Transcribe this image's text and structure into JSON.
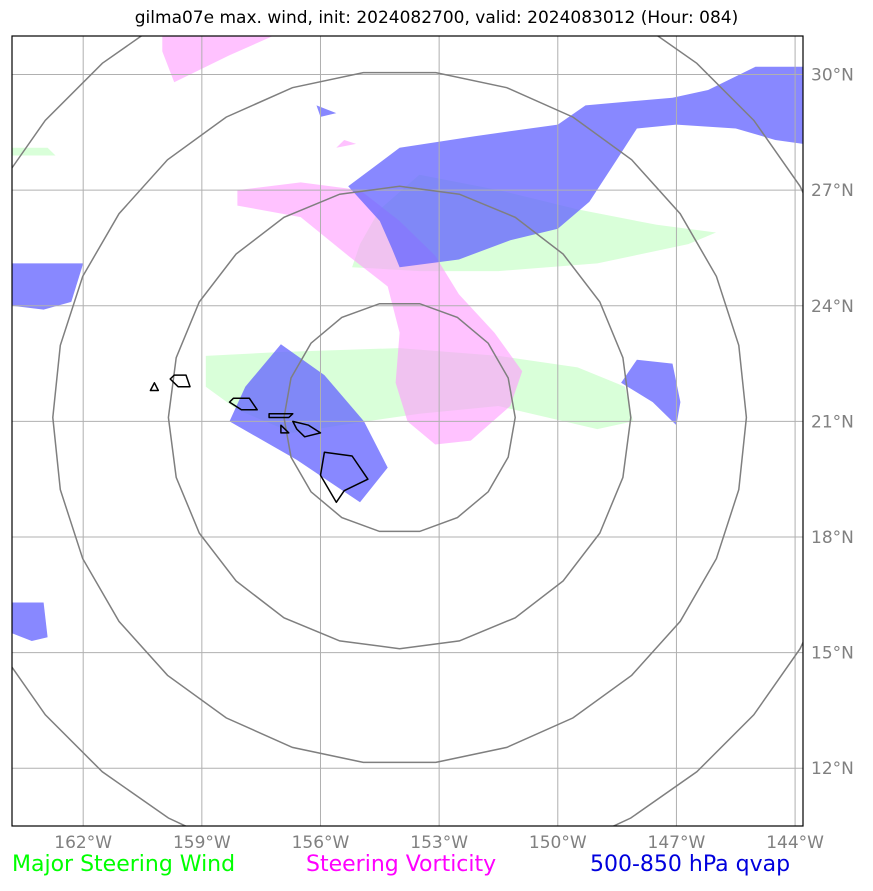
{
  "title": "gilma07e max. wind, init: 2024082700, valid: 2024083012 (Hour: 084)",
  "map": {
    "lon_range": [
      -163.8,
      -143.8
    ],
    "lat_range": [
      10.5,
      31.0
    ],
    "lon_ticks": [
      {
        "value": -162,
        "label": "162°W"
      },
      {
        "value": -159,
        "label": "159°W"
      },
      {
        "value": -156,
        "label": "156°W"
      },
      {
        "value": -153,
        "label": "153°W"
      },
      {
        "value": -150,
        "label": "150°W"
      },
      {
        "value": -147,
        "label": "147°W"
      },
      {
        "value": -144,
        "label": "144°W"
      }
    ],
    "lat_ticks": [
      {
        "value": 12,
        "label": "12°N"
      },
      {
        "value": 15,
        "label": "15°N"
      },
      {
        "value": 18,
        "label": "18°N"
      },
      {
        "value": 21,
        "label": "21°N"
      },
      {
        "value": 24,
        "label": "24°N"
      },
      {
        "value": 27,
        "label": "27°N"
      },
      {
        "value": 30,
        "label": "30°N"
      }
    ],
    "grid": true,
    "center": {
      "lon": -154.0,
      "lat": 21.1
    },
    "range_rings_deg": [
      3,
      6,
      9,
      12
    ],
    "colors": {
      "wind": "#ccffcc",
      "vorticity": "#ff99ff",
      "qvap": "#6666ff",
      "rings": "#7f7f7f",
      "grid": "#b0b0b0",
      "coast": "#000000"
    },
    "layers": {
      "wind": [
        [
          [
            -158.9,
            22.7
          ],
          [
            -157.0,
            22.8
          ],
          [
            -154.0,
            22.9
          ],
          [
            -151.5,
            22.7
          ],
          [
            -149.5,
            22.4
          ],
          [
            -148.3,
            21.9
          ],
          [
            -148.1,
            21.0
          ],
          [
            -149.0,
            20.8
          ],
          [
            -151.5,
            21.4
          ],
          [
            -153.5,
            21.2
          ],
          [
            -155.5,
            20.9
          ],
          [
            -156.7,
            20.7
          ],
          [
            -158.1,
            21.3
          ],
          [
            -158.9,
            21.9
          ]
        ],
        [
          [
            -153.5,
            27.4
          ],
          [
            -151.5,
            27.0
          ],
          [
            -149.5,
            26.5
          ],
          [
            -147.5,
            26.1
          ],
          [
            -146.0,
            25.9
          ],
          [
            -146.7,
            25.6
          ],
          [
            -149.0,
            25.1
          ],
          [
            -151.5,
            24.9
          ],
          [
            -153.5,
            24.9
          ],
          [
            -155.2,
            25.0
          ],
          [
            -155.0,
            25.6
          ],
          [
            -154.5,
            26.5
          ]
        ],
        [
          [
            -163.8,
            28.1
          ],
          [
            -162.9,
            28.1
          ],
          [
            -162.7,
            27.9
          ],
          [
            -163.8,
            27.9
          ]
        ]
      ],
      "vorticity": [
        [
          [
            -160.0,
            31.0
          ],
          [
            -157.2,
            31.0
          ],
          [
            -158.3,
            30.5
          ],
          [
            -159.7,
            29.8
          ],
          [
            -160.0,
            30.6
          ]
        ],
        [
          [
            -158.1,
            27.0
          ],
          [
            -156.5,
            27.2
          ],
          [
            -155.0,
            27.0
          ],
          [
            -154.0,
            26.2
          ],
          [
            -153.1,
            25.3
          ],
          [
            -152.5,
            24.3
          ],
          [
            -151.6,
            23.3
          ],
          [
            -150.9,
            22.3
          ],
          [
            -151.2,
            21.4
          ],
          [
            -152.2,
            20.5
          ],
          [
            -153.1,
            20.4
          ],
          [
            -153.8,
            21.0
          ],
          [
            -154.1,
            22.0
          ],
          [
            -154.0,
            23.3
          ],
          [
            -154.3,
            24.5
          ],
          [
            -155.3,
            25.3
          ],
          [
            -156.5,
            26.3
          ],
          [
            -158.1,
            26.6
          ]
        ],
        [
          [
            -155.6,
            28.1
          ],
          [
            -155.1,
            28.2
          ],
          [
            -155.4,
            28.3
          ]
        ]
      ],
      "qvap": [
        [
          [
            -155.3,
            27.1
          ],
          [
            -154.0,
            28.1
          ],
          [
            -152.1,
            28.4
          ],
          [
            -150.0,
            28.7
          ],
          [
            -149.3,
            29.2
          ],
          [
            -147.1,
            29.4
          ],
          [
            -146.2,
            29.6
          ],
          [
            -145.0,
            30.2
          ],
          [
            -143.8,
            30.2
          ],
          [
            -143.8,
            28.2
          ],
          [
            -144.5,
            28.3
          ],
          [
            -145.5,
            28.6
          ],
          [
            -147.0,
            28.7
          ],
          [
            -148.0,
            28.6
          ],
          [
            -148.5,
            27.8
          ],
          [
            -149.2,
            26.7
          ],
          [
            -150.0,
            26.0
          ],
          [
            -151.2,
            25.7
          ],
          [
            -152.5,
            25.2
          ],
          [
            -154.0,
            25.0
          ],
          [
            -154.2,
            25.5
          ],
          [
            -154.5,
            26.2
          ]
        ],
        [
          [
            -163.8,
            25.1
          ],
          [
            -162.0,
            25.1
          ],
          [
            -162.3,
            24.1
          ],
          [
            -163.0,
            23.9
          ],
          [
            -163.8,
            24.0
          ]
        ],
        [
          [
            -157.0,
            23.0
          ],
          [
            -155.9,
            22.2
          ],
          [
            -154.9,
            21.0
          ],
          [
            -154.3,
            19.8
          ],
          [
            -155.0,
            18.9
          ],
          [
            -156.6,
            20.0
          ],
          [
            -158.3,
            21.0
          ],
          [
            -157.9,
            21.9
          ]
        ],
        [
          [
            -148.0,
            22.6
          ],
          [
            -147.1,
            22.5
          ],
          [
            -146.9,
            21.5
          ],
          [
            -147.0,
            20.9
          ],
          [
            -147.6,
            21.5
          ],
          [
            -148.4,
            22.0
          ]
        ],
        [
          [
            -163.8,
            16.3
          ],
          [
            -163.0,
            16.3
          ],
          [
            -162.9,
            15.4
          ],
          [
            -163.3,
            15.3
          ],
          [
            -163.8,
            15.5
          ]
        ],
        [
          [
            -156.1,
            29.2
          ],
          [
            -155.6,
            29.0
          ],
          [
            -156.0,
            28.9
          ]
        ]
      ]
    },
    "islands": [
      [
        [
          -159.7,
          22.2
        ],
        [
          -159.4,
          22.2
        ],
        [
          -159.3,
          21.9
        ],
        [
          -159.6,
          21.9
        ],
        [
          -159.8,
          22.1
        ]
      ],
      [
        [
          -160.2,
          22.0
        ],
        [
          -160.1,
          21.8
        ],
        [
          -160.3,
          21.8
        ]
      ],
      [
        [
          -158.2,
          21.6
        ],
        [
          -157.8,
          21.6
        ],
        [
          -157.6,
          21.3
        ],
        [
          -158.0,
          21.3
        ],
        [
          -158.3,
          21.5
        ]
      ],
      [
        [
          -157.3,
          21.2
        ],
        [
          -156.7,
          21.2
        ],
        [
          -156.8,
          21.1
        ],
        [
          -157.3,
          21.1
        ]
      ],
      [
        [
          -157.0,
          20.9
        ],
        [
          -156.8,
          20.7
        ],
        [
          -157.0,
          20.7
        ]
      ],
      [
        [
          -156.7,
          21.0
        ],
        [
          -156.3,
          20.9
        ],
        [
          -156.0,
          20.7
        ],
        [
          -156.4,
          20.6
        ],
        [
          -156.6,
          20.8
        ]
      ],
      [
        [
          -155.9,
          20.2
        ],
        [
          -155.2,
          20.1
        ],
        [
          -154.8,
          19.5
        ],
        [
          -155.4,
          19.2
        ],
        [
          -155.6,
          18.9
        ],
        [
          -156.0,
          19.6
        ]
      ]
    ]
  },
  "legend": {
    "wind": {
      "label": "Major Steering Wind",
      "color": "#00ff00"
    },
    "vorticity": {
      "label": "Steering Vorticity",
      "color": "#ff00ff"
    },
    "qvap": {
      "label": "500-850 hPa qvap",
      "color": "#0000dd"
    }
  }
}
